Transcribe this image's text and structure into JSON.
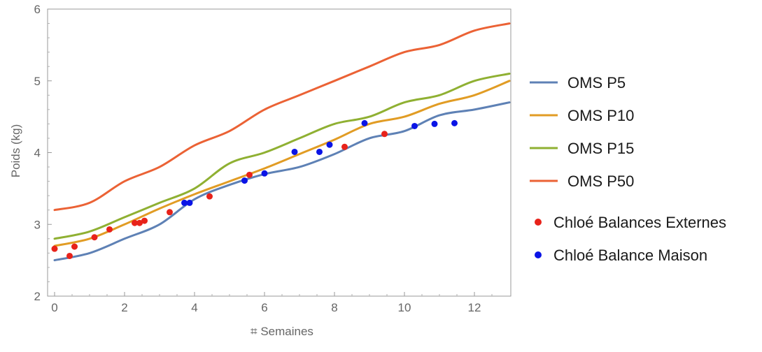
{
  "chart_data": {
    "type": "line",
    "title": "",
    "xlabel": "⌗ Semaines",
    "ylabel": "Poids (kg)",
    "xlim": [
      0,
      13
    ],
    "ylim": [
      2,
      6
    ],
    "x_ticks": [
      0,
      2,
      4,
      6,
      8,
      10,
      12
    ],
    "y_ticks": [
      2,
      3,
      4,
      5,
      6
    ],
    "grid": false,
    "legend_position": "right",
    "series": [
      {
        "name": "OMS P5",
        "kind": "line",
        "color": "#5e81b5",
        "x": [
          0,
          1,
          2,
          3,
          4,
          5,
          6,
          7,
          8,
          9,
          10,
          11,
          12,
          13
        ],
        "y": [
          2.5,
          2.6,
          2.8,
          3.0,
          3.35,
          3.55,
          3.7,
          3.8,
          3.98,
          4.2,
          4.3,
          4.52,
          4.6,
          4.7
        ]
      },
      {
        "name": "OMS P10",
        "kind": "line",
        "color": "#e19c24",
        "x": [
          0,
          1,
          2,
          3,
          4,
          5,
          6,
          7,
          8,
          9,
          10,
          11,
          12,
          13
        ],
        "y": [
          2.7,
          2.8,
          3.0,
          3.22,
          3.42,
          3.6,
          3.78,
          3.98,
          4.18,
          4.4,
          4.5,
          4.68,
          4.8,
          5.0
        ]
      },
      {
        "name": "OMS P15",
        "kind": "line",
        "color": "#8fb032",
        "x": [
          0,
          1,
          2,
          3,
          4,
          5,
          6,
          7,
          8,
          9,
          10,
          11,
          12,
          13
        ],
        "y": [
          2.8,
          2.9,
          3.1,
          3.3,
          3.5,
          3.85,
          4.0,
          4.2,
          4.4,
          4.5,
          4.7,
          4.8,
          5.0,
          5.1
        ]
      },
      {
        "name": "OMS P50",
        "kind": "line",
        "color": "#eb6235",
        "x": [
          0,
          1,
          2,
          3,
          4,
          5,
          6,
          7,
          8,
          9,
          10,
          11,
          12,
          13
        ],
        "y": [
          3.2,
          3.3,
          3.6,
          3.8,
          4.1,
          4.3,
          4.6,
          4.8,
          5.0,
          5.2,
          5.4,
          5.5,
          5.7,
          5.8
        ]
      },
      {
        "name": "Chloé Balances Externes",
        "kind": "scatter",
        "color": "#e8221a",
        "x": [
          0.0,
          0.43,
          0.57,
          1.14,
          1.57,
          2.29,
          2.43,
          2.57,
          3.29,
          4.43,
          5.57,
          8.29,
          9.43
        ],
        "y": [
          2.66,
          2.56,
          2.69,
          2.82,
          2.93,
          3.02,
          3.02,
          3.05,
          3.17,
          3.39,
          3.69,
          4.08,
          4.26
        ]
      },
      {
        "name": "Chloé Balance Maison",
        "kind": "scatter",
        "color": "#0a14e6",
        "x": [
          3.71,
          3.86,
          5.43,
          6.0,
          6.86,
          7.57,
          7.86,
          8.86,
          10.29,
          10.86,
          11.43
        ],
        "y": [
          3.3,
          3.3,
          3.61,
          3.71,
          4.01,
          4.01,
          4.11,
          4.41,
          4.37,
          4.4,
          4.41
        ]
      }
    ]
  }
}
